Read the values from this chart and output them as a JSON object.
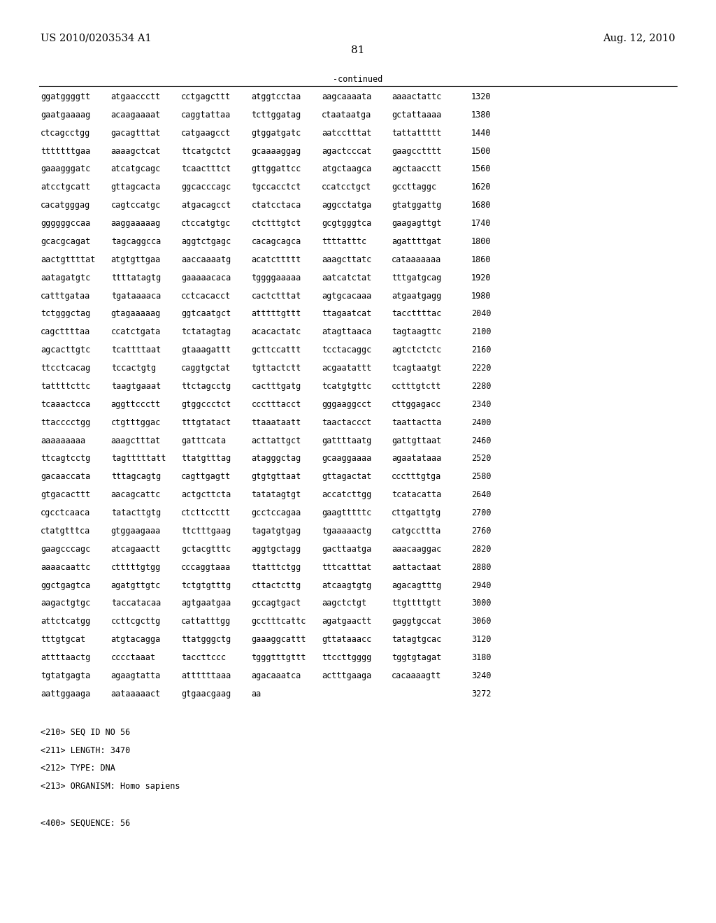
{
  "header_left": "US 2010/0203534 A1",
  "header_right": "Aug. 12, 2010",
  "page_number": "81",
  "continued_label": "-continued",
  "sequence_lines": [
    [
      "ggatggggtt",
      "atgaaccctt",
      "cctgagcttt",
      "atggtcctaa",
      "aagcaaaata",
      "aaaactattc",
      "1320"
    ],
    [
      "gaatgaaaag",
      "acaagaaaat",
      "caggtattaa",
      "tcttggatag",
      "ctaataatga",
      "gctattaaaa",
      "1380"
    ],
    [
      "ctcagcctgg",
      "gacagtttat",
      "catgaagcct",
      "gtggatgatc",
      "aatcctttat",
      "tattattttt",
      "1440"
    ],
    [
      "tttttttgaa",
      "aaaagctcat",
      "ttcatgctct",
      "gcaaaaggag",
      "agactcccat",
      "gaagcctttt",
      "1500"
    ],
    [
      "gaaagggatc",
      "atcatgcagc",
      "tcaactttct",
      "gttggattcc",
      "atgctaagca",
      "agctaacctt",
      "1560"
    ],
    [
      "atcctgcatt",
      "gttagcacta",
      "ggcacccagc",
      "tgccacctct",
      "ccatcctgct",
      "gccttaggc",
      "1620"
    ],
    [
      "cacatgggag",
      "cagtccatgc",
      "atgacagcct",
      "ctatcctaca",
      "aggcctatga",
      "gtatggattg",
      "1680"
    ],
    [
      "ggggggccaa",
      "aaggaaaaag",
      "ctccatgtgc",
      "ctctttgtct",
      "gcgtgggtca",
      "gaagagttgt",
      "1740"
    ],
    [
      "gcacgcagat",
      "tagcaggcca",
      "aggtctgagc",
      "cacagcagca",
      "ttttatttc",
      "agattttgat",
      "1800"
    ],
    [
      "aactgttttat",
      "atgtgttgaa",
      "aaccaaaatg",
      "acatcttttt",
      "aaagcttatc",
      "cataaaaaaa",
      "1860"
    ],
    [
      "aatagatgtc",
      "ttttatagtg",
      "gaaaaacaca",
      "tggggaaaaa",
      "aatcatctat",
      "tttgatgcag",
      "1920"
    ],
    [
      "catttgataa",
      "tgataaaaca",
      "cctcacacct",
      "cactctttat",
      "agtgcacaaa",
      "atgaatgagg",
      "1980"
    ],
    [
      "tctgggctag",
      "gtagaaaaag",
      "ggtcaatgct",
      "atttttgttt",
      "ttagaatcat",
      "taccttttac",
      "2040"
    ],
    [
      "cagcttttaa",
      "ccatctgata",
      "tctatagtag",
      "acacactatc",
      "atagttaaca",
      "tagtaagttc",
      "2100"
    ],
    [
      "agcacttgtc",
      "tcattttaat",
      "gtaaagattt",
      "gcttccattt",
      "tcctacaggc",
      "agtctctctc",
      "2160"
    ],
    [
      "ttcctcacag",
      "tccactgtg",
      "caggtgctat",
      "tgttactctt",
      "acgaatattt",
      "tcagtaatgt",
      "2220"
    ],
    [
      "tattttcttc",
      "taagtgaaat",
      "ttctagcctg",
      "cactttgatg",
      "tcatgtgttc",
      "cctttgtctt",
      "2280"
    ],
    [
      "tcaaactcca",
      "aggttccctt",
      "gtggccctct",
      "ccctttacct",
      "gggaaggcct",
      "cttggagacc",
      "2340"
    ],
    [
      "ttacccctgg",
      "ctgtttggac",
      "tttgtatact",
      "ttaaataatt",
      "taactaccct",
      "taattactta",
      "2400"
    ],
    [
      "aaaaaaaaa",
      "aaagctttat",
      "gatttcata",
      "acttattgct",
      "gattttaatg",
      "gattgttaat",
      "2460"
    ],
    [
      "ttcagtcctg",
      "tagtttttatt",
      "ttatgtttag",
      "atagggctag",
      "gcaaggaaaa",
      "agaatataaa",
      "2520"
    ],
    [
      "gacaaccata",
      "tttagcagtg",
      "cagttgagtt",
      "gtgtgttaat",
      "gttagactat",
      "ccctttgtga",
      "2580"
    ],
    [
      "gtgacacttt",
      "aacagcattc",
      "actgcttcta",
      "tatatagtgt",
      "accatcttgg",
      "tcatacatta",
      "2640"
    ],
    [
      "cgcctcaaca",
      "tatacttgtg",
      "ctcttccttt",
      "gcctccagaa",
      "gaagtttttc",
      "cttgattgtg",
      "2700"
    ],
    [
      "ctatgtttca",
      "gtggaagaaa",
      "ttctttgaag",
      "tagatgtgag",
      "tgaaaaactg",
      "catgccttta",
      "2760"
    ],
    [
      "gaagcccagc",
      "atcagaactt",
      "gctacgtttc",
      "aggtgctagg",
      "gacttaatga",
      "aaacaaggac",
      "2820"
    ],
    [
      "aaaacaattc",
      "ctttttgtgg",
      "cccaggtaaa",
      "ttatttctgg",
      "tttcatttat",
      "aattactaat",
      "2880"
    ],
    [
      "ggctgagtca",
      "agatgttgtc",
      "tctgtgtttg",
      "cttactcttg",
      "atcaagtgtg",
      "agacagtttg",
      "2940"
    ],
    [
      "aagactgtgc",
      "taccatacaa",
      "agtgaatgaa",
      "gccagtgact",
      "aagctctgt",
      "ttgttttgtt",
      "3000"
    ],
    [
      "attctcatgg",
      "ccttcgcttg",
      "cattatttgg",
      "gcctttcattc",
      "agatgaactt",
      "gaggtgccat",
      "3060"
    ],
    [
      "tttgtgcat",
      "atgtacagga",
      "ttatgggctg",
      "gaaaggcattt",
      "gttataaacc",
      "tatagtgcac",
      "3120"
    ],
    [
      "attttaactg",
      "cccctaaat",
      "taccttccc",
      "tgggtttgttt",
      "ttccttgggg",
      "tggtgtagat",
      "3180"
    ],
    [
      "tgtatgagta",
      "agaagtatta",
      "attttttaaa",
      "agacaaatca",
      "actttgaaga",
      "cacaaaagtt",
      "3240"
    ],
    [
      "aattggaaga",
      "aataaaaact",
      "gtgaacgaag",
      "aa",
      "",
      "",
      "3272"
    ]
  ],
  "metadata_lines": [
    "<210> SEQ ID NO 56",
    "<211> LENGTH: 3470",
    "<212> TYPE: DNA",
    "<213> ORGANISM: Homo sapiens",
    "",
    "<400> SEQUENCE: 56"
  ],
  "bg_color": "#ffffff",
  "text_color": "#000000",
  "font_size_header": 10.5,
  "font_size_body": 8.5,
  "font_size_page": 11
}
